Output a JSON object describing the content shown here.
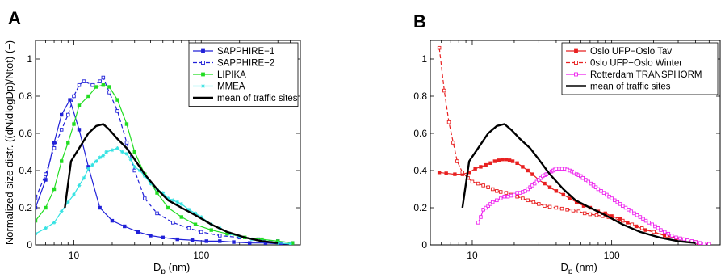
{
  "chart_data": [
    {
      "type": "line",
      "panel_label": "A",
      "xscale": "log",
      "xlim": [
        5,
        600
      ],
      "ylim": [
        0,
        1.1
      ],
      "xticks": [
        10,
        100
      ],
      "xtick_labels": [
        "10",
        "100"
      ],
      "yticks": [
        0,
        0.2,
        0.4,
        0.6,
        0.8,
        1
      ],
      "ytick_labels": [
        "0",
        "0.2",
        "0.4",
        "0.6",
        "0.8",
        "1"
      ],
      "xlabel_main": "D",
      "xlabel_sub": "p",
      "xlabel_unit": " (nm)",
      "ylabel": "Normalized size distr. ((dN/dlogDp)/Ntot) (−)",
      "legend_position": "top-right",
      "series": [
        {
          "name": "SAPPHIRE−1",
          "color": "#2020d8",
          "dash": "solid",
          "marker": "filled-square",
          "x": [
            5,
            6,
            7,
            8,
            9.3,
            11,
            13,
            16,
            20,
            25,
            32,
            40,
            50,
            65,
            85,
            110,
            140,
            180,
            240,
            320,
            420,
            520
          ],
          "y": [
            0.2,
            0.35,
            0.55,
            0.7,
            0.78,
            0.62,
            0.42,
            0.2,
            0.13,
            0.1,
            0.07,
            0.05,
            0.04,
            0.03,
            0.025,
            0.02,
            0.02,
            0.015,
            0.01,
            0.01,
            0.005,
            0.005
          ]
        },
        {
          "name": "SAPPHIRE−2",
          "color": "#2020d8",
          "dash": "dashed",
          "marker": "open-square",
          "x": [
            5,
            6,
            7,
            8,
            9,
            10,
            11,
            12,
            14,
            16,
            17,
            19,
            22,
            26,
            30,
            36,
            45,
            60,
            80,
            100,
            140,
            200,
            280,
            400,
            520
          ],
          "y": [
            0.25,
            0.38,
            0.52,
            0.62,
            0.7,
            0.8,
            0.86,
            0.88,
            0.86,
            0.88,
            0.9,
            0.82,
            0.72,
            0.55,
            0.4,
            0.25,
            0.17,
            0.12,
            0.09,
            0.07,
            0.05,
            0.04,
            0.03,
            0.02,
            0.01
          ]
        },
        {
          "name": "LIPIKA",
          "color": "#22dd22",
          "dash": "solid",
          "marker": "filled-square",
          "x": [
            5,
            6,
            7,
            8,
            9,
            10,
            11,
            13,
            15,
            17,
            19,
            22,
            26,
            30,
            36,
            45,
            55,
            70,
            90,
            120,
            160,
            220,
            300,
            400,
            520
          ],
          "y": [
            0.13,
            0.2,
            0.3,
            0.45,
            0.55,
            0.65,
            0.75,
            0.8,
            0.85,
            0.86,
            0.85,
            0.78,
            0.65,
            0.5,
            0.38,
            0.28,
            0.2,
            0.15,
            0.11,
            0.08,
            0.06,
            0.04,
            0.03,
            0.02,
            0.01
          ]
        },
        {
          "name": "MMEA",
          "color": "#33e2e2",
          "dash": "solid",
          "marker": "star",
          "x": [
            5,
            6,
            7,
            8,
            9,
            10,
            11,
            12,
            13,
            14,
            15,
            16,
            17,
            18,
            20,
            22,
            24,
            26,
            28,
            30,
            33,
            36,
            40,
            45,
            50,
            55,
            60,
            65,
            70,
            80,
            90,
            100,
            120,
            140,
            170,
            200,
            250,
            300,
            400,
            500
          ],
          "y": [
            0.06,
            0.09,
            0.12,
            0.18,
            0.23,
            0.27,
            0.32,
            0.36,
            0.41,
            0.43,
            0.45,
            0.47,
            0.48,
            0.5,
            0.51,
            0.52,
            0.5,
            0.49,
            0.46,
            0.42,
            0.4,
            0.37,
            0.33,
            0.3,
            0.28,
            0.25,
            0.24,
            0.23,
            0.22,
            0.19,
            0.17,
            0.15,
            0.11,
            0.09,
            0.06,
            0.045,
            0.03,
            0.02,
            0.01,
            0.005
          ]
        },
        {
          "name": "mean of traffic sites",
          "color": "#000000",
          "dash": "solid",
          "marker": "none",
          "width": 2.4,
          "x": [
            8.5,
            9.5,
            11,
            13,
            15,
            17,
            19,
            22,
            26,
            30,
            36,
            45,
            55,
            70,
            90,
            120,
            160,
            220,
            300,
            400
          ],
          "y": [
            0.2,
            0.45,
            0.52,
            0.6,
            0.64,
            0.65,
            0.62,
            0.57,
            0.52,
            0.46,
            0.38,
            0.3,
            0.24,
            0.2,
            0.16,
            0.11,
            0.07,
            0.04,
            0.02,
            0.01
          ]
        }
      ]
    },
    {
      "type": "line",
      "panel_label": "B",
      "xscale": "log",
      "xlim": [
        5,
        600
      ],
      "ylim": [
        0,
        1.1
      ],
      "xticks": [
        10,
        100
      ],
      "xtick_labels": [
        "10",
        "100"
      ],
      "yticks": [
        0,
        0.2,
        0.4,
        0.6,
        0.8,
        1
      ],
      "ytick_labels": [
        "0",
        "0.2",
        "0.4",
        "0.6",
        "0.8",
        "1"
      ],
      "xlabel_main": "D",
      "xlabel_sub": "p",
      "xlabel_unit": " (nm)",
      "ylabel": "",
      "legend_position": "top-right",
      "series": [
        {
          "name": "Oslo UFP−Oslo Tav",
          "color": "#e82020",
          "dash": "solid",
          "marker": "filled-square",
          "x": [
            5.8,
            6.5,
            7.5,
            8.5,
            9.5,
            10.5,
            11.5,
            12.5,
            13.5,
            14.5,
            15.5,
            16.5,
            17.5,
            18.5,
            19.5,
            21,
            23,
            25,
            27,
            30,
            33,
            36,
            40,
            45,
            50,
            56,
            63,
            70,
            80,
            90,
            100,
            115,
            130,
            150,
            175,
            200,
            240,
            290,
            350,
            420,
            500
          ],
          "y": [
            0.39,
            0.385,
            0.38,
            0.38,
            0.39,
            0.41,
            0.42,
            0.43,
            0.44,
            0.45,
            0.455,
            0.46,
            0.46,
            0.455,
            0.45,
            0.44,
            0.42,
            0.4,
            0.38,
            0.35,
            0.33,
            0.31,
            0.29,
            0.27,
            0.25,
            0.23,
            0.21,
            0.2,
            0.18,
            0.17,
            0.155,
            0.14,
            0.12,
            0.1,
            0.08,
            0.07,
            0.05,
            0.035,
            0.02,
            0.01,
            0.005
          ]
        },
        {
          "name": "0slo UFP−Oslo Winter",
          "color": "#e82020",
          "dash": "dashed",
          "marker": "open-square",
          "x": [
            5.8,
            6.3,
            6.8,
            7.3,
            7.8,
            8.5,
            9.3,
            10,
            11,
            12,
            13,
            14,
            15,
            16,
            17.5,
            19,
            21,
            23,
            25,
            27.5,
            30,
            33,
            36,
            40,
            44,
            48,
            53,
            58,
            64,
            70,
            78,
            86,
            95,
            105,
            120,
            140,
            165,
            200,
            250,
            320,
            400,
            500
          ],
          "y": [
            1.06,
            0.83,
            0.66,
            0.55,
            0.45,
            0.39,
            0.36,
            0.34,
            0.33,
            0.32,
            0.31,
            0.3,
            0.29,
            0.285,
            0.28,
            0.27,
            0.26,
            0.25,
            0.24,
            0.23,
            0.22,
            0.21,
            0.205,
            0.2,
            0.195,
            0.19,
            0.185,
            0.18,
            0.17,
            0.165,
            0.16,
            0.155,
            0.15,
            0.14,
            0.13,
            0.11,
            0.09,
            0.07,
            0.05,
            0.03,
            0.015,
            0.005
          ]
        },
        {
          "name": "Rotterdam TRANSPHORM",
          "color": "#ee22ee",
          "dash": "solid",
          "marker": "open-square",
          "x": [
            11,
            11.5,
            12,
            12.5,
            13,
            13.5,
            14,
            15,
            16,
            17,
            18,
            19,
            20,
            21,
            22,
            23,
            24,
            25,
            26,
            27,
            28,
            29,
            30,
            31,
            32,
            33,
            34,
            35,
            36,
            37,
            38,
            39,
            40,
            42,
            44,
            46,
            48,
            50,
            52,
            54,
            56,
            58,
            60,
            62,
            65,
            68,
            71,
            74,
            77,
            80,
            84,
            88,
            92,
            96,
            100,
            105,
            110,
            115,
            120,
            126,
            132,
            138,
            145,
            152,
            160,
            168,
            176,
            185,
            195,
            205,
            215,
            225,
            240,
            255,
            270,
            290,
            310,
            330,
            350,
            375,
            400,
            430,
            460,
            500
          ],
          "y": [
            0.12,
            0.15,
            0.19,
            0.2,
            0.21,
            0.22,
            0.23,
            0.24,
            0.25,
            0.26,
            0.26,
            0.265,
            0.27,
            0.28,
            0.28,
            0.285,
            0.29,
            0.3,
            0.31,
            0.32,
            0.33,
            0.34,
            0.35,
            0.36,
            0.37,
            0.375,
            0.38,
            0.385,
            0.39,
            0.395,
            0.4,
            0.405,
            0.41,
            0.41,
            0.41,
            0.41,
            0.405,
            0.4,
            0.395,
            0.39,
            0.38,
            0.375,
            0.37,
            0.36,
            0.35,
            0.34,
            0.33,
            0.32,
            0.31,
            0.3,
            0.29,
            0.28,
            0.27,
            0.26,
            0.25,
            0.24,
            0.23,
            0.22,
            0.21,
            0.2,
            0.19,
            0.18,
            0.17,
            0.16,
            0.15,
            0.14,
            0.13,
            0.12,
            0.11,
            0.1,
            0.09,
            0.08,
            0.07,
            0.06,
            0.05,
            0.04,
            0.035,
            0.03,
            0.025,
            0.02,
            0.015,
            0.01,
            0.007,
            0.005
          ]
        },
        {
          "name": "mean of traffic sites",
          "color": "#000000",
          "dash": "solid",
          "marker": "none",
          "width": 2.4,
          "x": [
            8.5,
            9.5,
            11,
            13,
            15,
            17,
            19,
            22,
            26,
            30,
            36,
            45,
            55,
            70,
            90,
            120,
            160,
            220,
            300,
            400
          ],
          "y": [
            0.2,
            0.45,
            0.52,
            0.6,
            0.64,
            0.65,
            0.62,
            0.57,
            0.52,
            0.46,
            0.38,
            0.3,
            0.24,
            0.2,
            0.16,
            0.11,
            0.07,
            0.04,
            0.02,
            0.01
          ]
        }
      ]
    }
  ]
}
